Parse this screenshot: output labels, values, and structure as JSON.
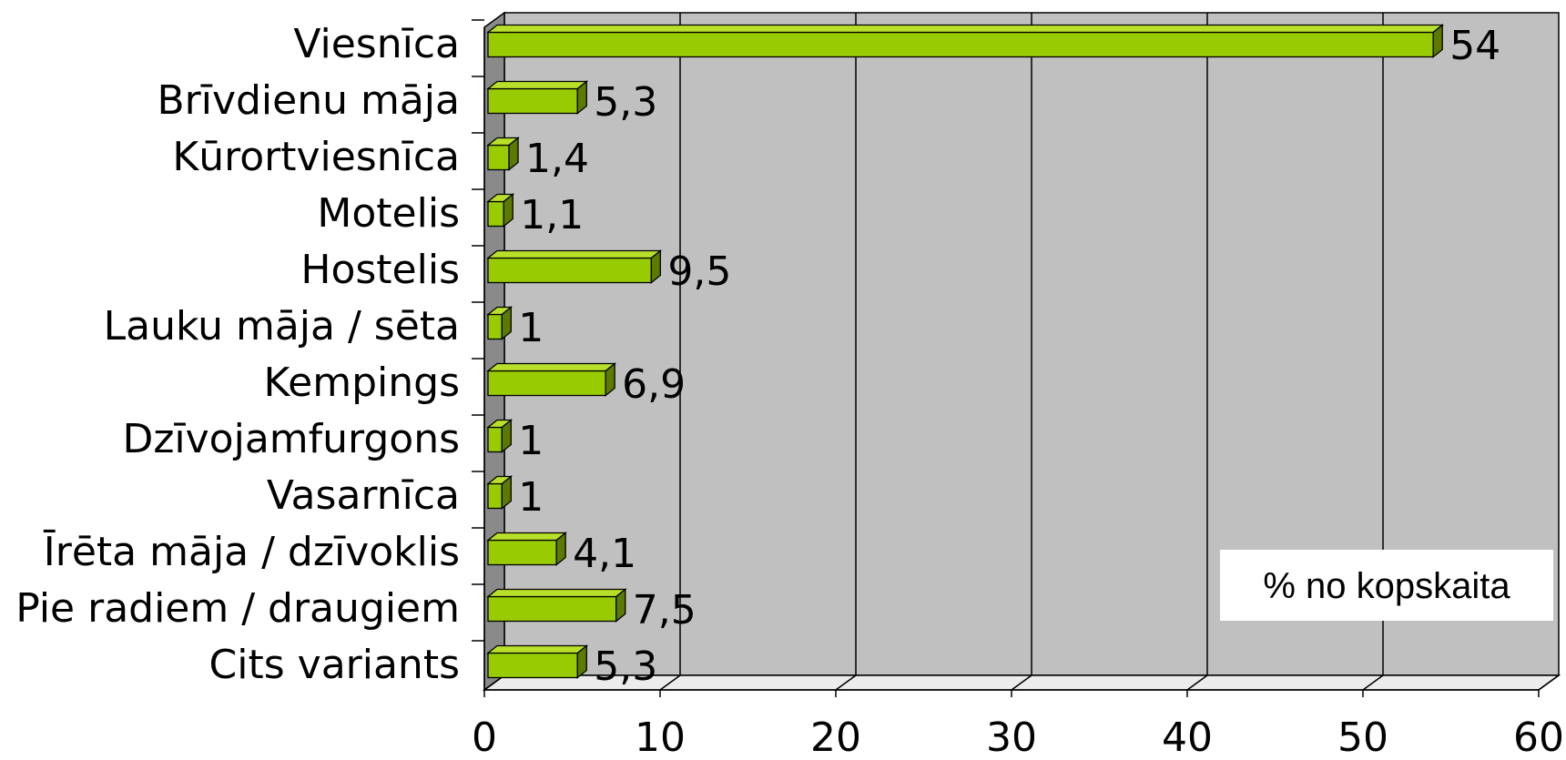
{
  "chart_data": {
    "type": "bar",
    "orientation": "horizontal",
    "style": "3d",
    "categories": [
      "Viesnīca",
      "Brīvdienu māja",
      "Kūrortviesnīca",
      "Motelis",
      "Hostelis",
      "Lauku māja / sēta",
      "Kempings",
      "Dzīvojamfurgons",
      "Vasarnīca",
      "Īrēta māja / dzīvoklis",
      "Pie radiem / draugiem",
      "Cits variants"
    ],
    "values": [
      54,
      5.3,
      1.4,
      1.1,
      9.5,
      1,
      6.9,
      1,
      1,
      4.1,
      7.5,
      5.3
    ],
    "value_labels": [
      "54",
      "5,3",
      "1,4",
      "1,1",
      "9,5",
      "1",
      "6,9",
      "1",
      "1",
      "4,1",
      "7,5",
      "5,3"
    ],
    "series": [
      {
        "values": [
          54,
          5.3,
          1.4,
          1.1,
          9.5,
          1,
          6.9,
          1,
          1,
          4.1,
          7.5,
          5.3
        ]
      }
    ],
    "xlim": [
      0,
      60
    ],
    "xticks": [
      "0",
      "10",
      "20",
      "30",
      "40",
      "50",
      "60"
    ],
    "grid": true,
    "legend_text": "% no kopskaita",
    "legend_position": "bottom-right",
    "colors": {
      "bar_front": "#99cc00",
      "bar_top": "#b8e02a",
      "bar_side": "#5c7a00",
      "plot_back": "#c0c0c0",
      "plot_floor": "#ececec",
      "plot_wall": "#8a8a8a",
      "gridline": "#000000"
    }
  }
}
